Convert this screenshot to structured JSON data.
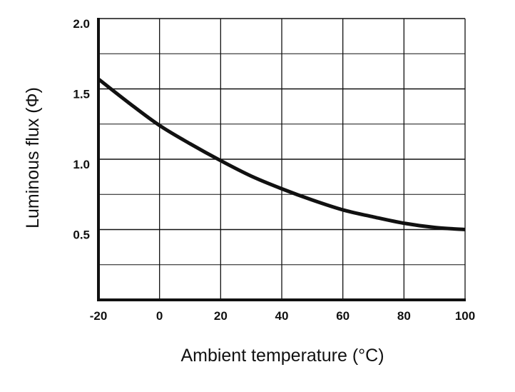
{
  "chart_data": {
    "type": "line",
    "title": "",
    "xlabel": "Ambient temperature (°C)",
    "ylabel": "Luminous flux (Φ)",
    "xlim": [
      -20,
      100
    ],
    "ylim": [
      0,
      2.0
    ],
    "x_ticks": [
      "-20",
      "0",
      "20",
      "40",
      "60",
      "80",
      "100"
    ],
    "y_ticks": [
      "0.5",
      "1.0",
      "1.5",
      "2.0"
    ],
    "grid": true,
    "legend": "none",
    "series": [
      {
        "x": [
          -20,
          -10,
          0,
          10,
          20,
          30,
          40,
          50,
          60,
          70,
          80,
          90,
          100
        ],
        "y": [
          1.57,
          1.4,
          1.24,
          1.11,
          0.99,
          0.88,
          0.79,
          0.71,
          0.64,
          0.59,
          0.545,
          0.515,
          0.5
        ]
      }
    ],
    "colors": {
      "line": "#111111",
      "grid": "#111111",
      "background": "#ffffff"
    }
  }
}
